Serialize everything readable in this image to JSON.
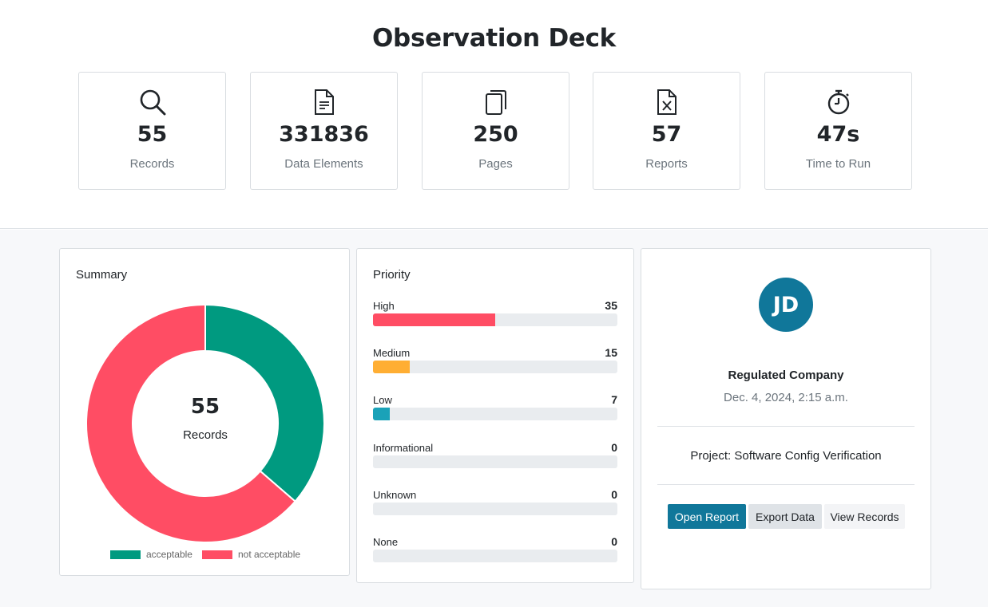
{
  "title": "Observation Deck",
  "stats": [
    {
      "icon": "search-icon",
      "value": "55",
      "label": "Records"
    },
    {
      "icon": "document-icon",
      "value": "331836",
      "label": "Data Elements"
    },
    {
      "icon": "pages-icon",
      "value": "250",
      "label": "Pages"
    },
    {
      "icon": "report-file-icon",
      "value": "57",
      "label": "Reports"
    },
    {
      "icon": "stopwatch-icon",
      "value": "47s",
      "label": "Time to Run"
    }
  ],
  "summary": {
    "title": "Summary",
    "center_value": "55",
    "center_label": "Records",
    "legend": [
      {
        "label": "acceptable",
        "color": "#009a80"
      },
      {
        "label": "not acceptable",
        "color": "#ff4d64"
      }
    ]
  },
  "chart_data": {
    "type": "pie",
    "categories": [
      "acceptable",
      "not acceptable"
    ],
    "values": [
      20,
      35
    ],
    "colors": [
      "#009a80",
      "#ff4d64"
    ],
    "title": "",
    "legend_position": "bottom"
  },
  "priority": {
    "title": "Priority",
    "items": [
      {
        "label": "High",
        "count": "35",
        "fraction": 0.5,
        "color": "#ff4d64"
      },
      {
        "label": "Medium",
        "count": "15",
        "fraction": 0.15,
        "color": "#ffae33"
      },
      {
        "label": "Low",
        "count": "7",
        "fraction": 0.07,
        "color": "#1aa2b8"
      },
      {
        "label": "Informational",
        "count": "0",
        "fraction": 0,
        "color": "#6c757d"
      },
      {
        "label": "Unknown",
        "count": "0",
        "fraction": 0,
        "color": "#6c757d"
      },
      {
        "label": "None",
        "count": "0",
        "fraction": 0,
        "color": "#6c757d"
      }
    ]
  },
  "profile": {
    "initials": "JD",
    "avatar_color": "#10779a",
    "company": "Regulated Company",
    "timestamp": "Dec. 4, 2024, 2:15 a.m.",
    "project": "Project: Software Config Verification",
    "buttons": {
      "open_report": "Open Report",
      "export_data": "Export Data",
      "view_records": "View Records"
    }
  }
}
